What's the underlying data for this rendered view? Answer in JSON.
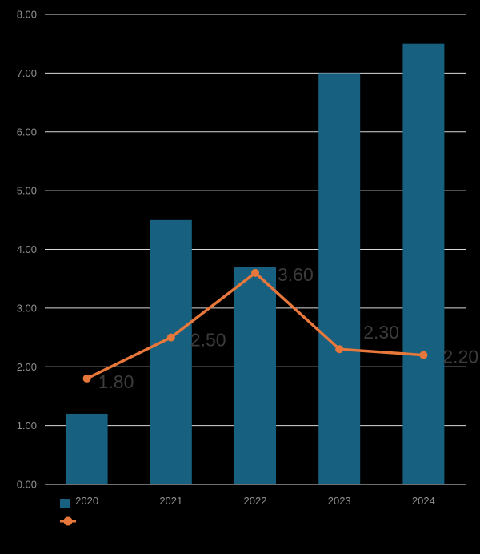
{
  "chart_data": {
    "type": "bar",
    "categories": [
      "2020",
      "2021",
      "2022",
      "2023",
      "2024"
    ],
    "ylim": [
      0,
      8
    ],
    "yticks": [
      "0.00",
      "1.00",
      "2.00",
      "3.00",
      "4.00",
      "5.00",
      "6.00",
      "7.00",
      "8.00"
    ],
    "grid": true,
    "legend_position": "bottom-left",
    "series": [
      {
        "type": "bar",
        "values": [
          1.2,
          4.5,
          3.7,
          7.0,
          7.5
        ],
        "color": "#17607f"
      },
      {
        "type": "line",
        "values": [
          1.8,
          2.5,
          3.6,
          2.3,
          2.2
        ],
        "labels": [
          "1.80",
          "2.50",
          "3.60",
          "2.30",
          "2.20"
        ],
        "color": "#e8773b"
      }
    ],
    "title": "",
    "xlabel": "",
    "ylabel": ""
  }
}
